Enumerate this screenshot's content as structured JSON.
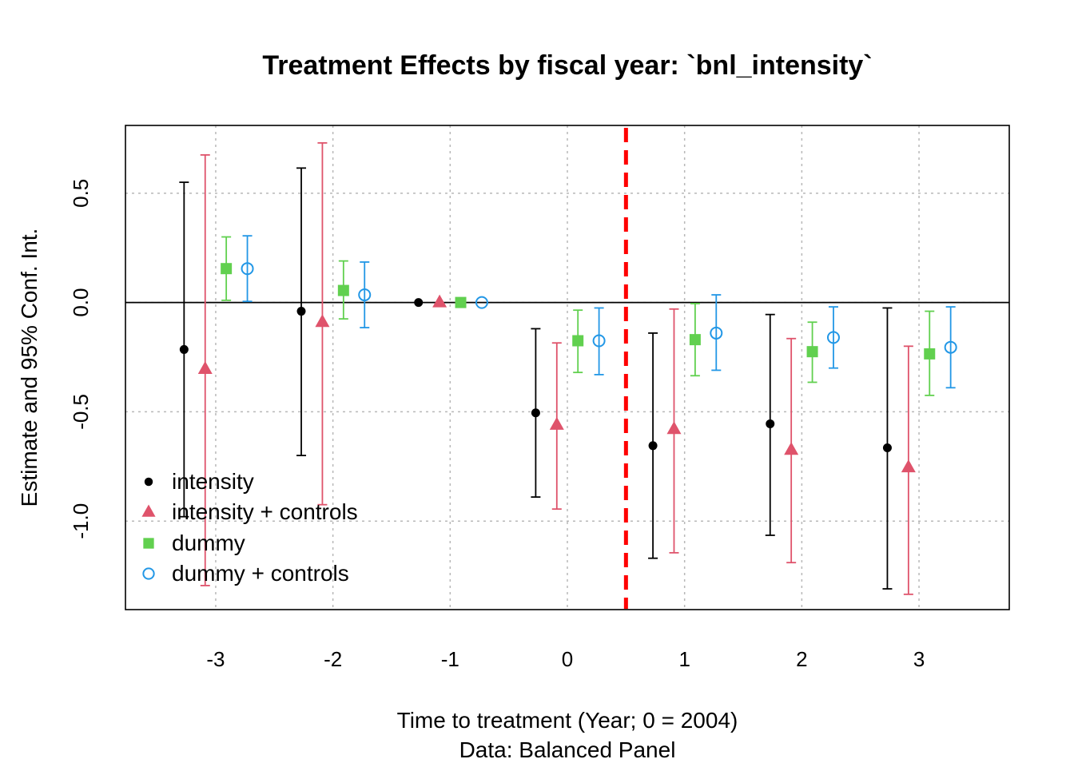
{
  "chart_data": {
    "type": "scatter",
    "title": "Treatment Effects by fiscal year: `bnl_intensity`",
    "xlabel": "Time to treatment (Year; 0 = 2004)",
    "subtitle": "Data: Balanced Panel",
    "ylabel": "Estimate and 95% Conf. Int.",
    "x_ticks": [
      -3,
      -2,
      -1,
      0,
      1,
      2,
      3
    ],
    "y_ticks": [
      -1.0,
      -0.5,
      0.0,
      0.5
    ],
    "y_tick_labels": [
      "-1.0",
      "-0.5",
      "0.0",
      "0.5"
    ],
    "x_tick_labels": [
      "-3",
      "-2",
      "-1",
      "0",
      "1",
      "2",
      "3"
    ],
    "xlim": [
      -3.77,
      3.77
    ],
    "ylim": [
      -1.405,
      0.81
    ],
    "grid": true,
    "reference_line_y": 0,
    "treatment_line_x": 0.5,
    "legend_position": "bottom-left",
    "series": [
      {
        "name": "intensity",
        "marker": "dot",
        "color": "#000000",
        "offset": -0.27,
        "x": [
          -3,
          -2,
          -1,
          0,
          1,
          2,
          3
        ],
        "estimate": [
          -0.215,
          -0.04,
          0.0,
          -0.505,
          -0.655,
          -0.555,
          -0.665
        ],
        "ci_low": [
          -0.98,
          -0.7,
          0.0,
          -0.89,
          -1.17,
          -1.065,
          -1.31
        ],
        "ci_high": [
          0.55,
          0.615,
          0.0,
          -0.12,
          -0.14,
          -0.055,
          -0.025
        ]
      },
      {
        "name": "intensity + controls",
        "marker": "triangle",
        "color": "#DF536B",
        "offset": -0.09,
        "x": [
          -3,
          -2,
          -1,
          0,
          1,
          2,
          3
        ],
        "estimate": [
          -0.305,
          -0.09,
          0.0,
          -0.56,
          -0.58,
          -0.675,
          -0.755
        ],
        "ci_low": [
          -1.295,
          -0.925,
          0.0,
          -0.945,
          -1.145,
          -1.19,
          -1.335
        ],
        "ci_high": [
          0.675,
          0.73,
          0.0,
          -0.185,
          -0.03,
          -0.165,
          -0.2
        ]
      },
      {
        "name": "dummy",
        "marker": "square",
        "color": "#61D04F",
        "offset": 0.09,
        "x": [
          -3,
          -2,
          -1,
          0,
          1,
          2,
          3
        ],
        "estimate": [
          0.155,
          0.055,
          0.0,
          -0.175,
          -0.17,
          -0.225,
          -0.235
        ],
        "ci_low": [
          0.01,
          -0.075,
          0.0,
          -0.32,
          -0.335,
          -0.365,
          -0.425
        ],
        "ci_high": [
          0.3,
          0.19,
          0.0,
          -0.035,
          -0.005,
          -0.09,
          -0.04
        ]
      },
      {
        "name": "dummy + controls",
        "marker": "circle",
        "color": "#2297E6",
        "offset": 0.27,
        "x": [
          -3,
          -2,
          -1,
          0,
          1,
          2,
          3
        ],
        "estimate": [
          0.155,
          0.035,
          0.0,
          -0.175,
          -0.14,
          -0.16,
          -0.205
        ],
        "ci_low": [
          0.005,
          -0.115,
          0.0,
          -0.33,
          -0.31,
          -0.3,
          -0.39
        ],
        "ci_high": [
          0.305,
          0.185,
          0.0,
          -0.025,
          0.035,
          -0.02,
          -0.02
        ]
      }
    ]
  }
}
